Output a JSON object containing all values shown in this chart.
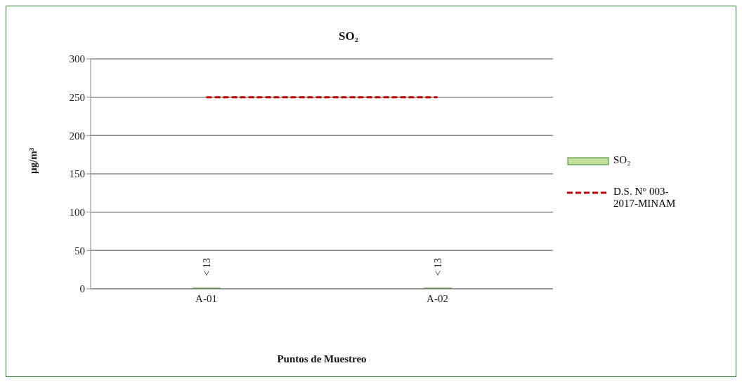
{
  "chart_data": {
    "type": "bar",
    "title": "SO₂",
    "xlabel": "Puntos de Muestreo",
    "ylabel": "µg/m³",
    "categories": [
      "A-01",
      "A-02"
    ],
    "series": [
      {
        "name": "SO₂",
        "color": "#c4dc9c",
        "values": [
          0,
          0
        ],
        "value_labels": [
          "< 13",
          "< 13"
        ]
      },
      {
        "name": "D.S. N° 003-2017-MINAM",
        "type": "line",
        "color": "#c00000",
        "line_style": "dashed",
        "marker": "none",
        "values": [
          250,
          250
        ]
      }
    ],
    "ylim": [
      0,
      300
    ],
    "yticks": [
      0,
      50,
      100,
      150,
      200,
      250,
      300
    ],
    "grid": "y",
    "legend": "right"
  }
}
